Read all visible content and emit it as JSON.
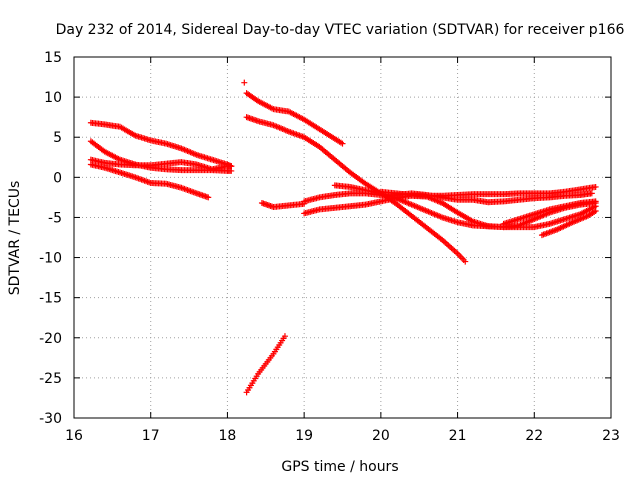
{
  "chart_data": {
    "type": "scatter",
    "title": "Day 232 of 2014, Sidereal Day-to-day VTEC variation (SDTVAR) for receiver p166",
    "xlabel": "GPS time / hours",
    "ylabel": "SDTVAR / TECUs",
    "xlim": [
      16,
      23
    ],
    "ylim": [
      -30,
      15
    ],
    "xticks": [
      16,
      17,
      18,
      19,
      20,
      21,
      22,
      23
    ],
    "yticks": [
      15,
      10,
      5,
      0,
      -5,
      -10,
      -15,
      -20,
      -25,
      -30
    ],
    "grid": true,
    "marker": "plus",
    "color": "#ff0000",
    "series": [
      {
        "x": [
          16.22,
          16.4,
          16.6,
          16.8,
          17.0,
          17.2,
          17.4,
          17.6,
          17.8,
          18.0,
          18.05
        ],
        "y": [
          6.8,
          6.6,
          6.3,
          5.2,
          4.6,
          4.2,
          3.6,
          2.8,
          2.2,
          1.6,
          1.4
        ]
      },
      {
        "x": [
          16.22,
          16.4,
          16.6,
          16.8,
          17.0,
          17.2,
          17.4,
          17.6,
          17.8,
          18.0,
          18.05
        ],
        "y": [
          4.5,
          3.2,
          2.2,
          1.6,
          1.2,
          1.0,
          0.9,
          0.9,
          0.9,
          0.8,
          0.8
        ]
      },
      {
        "x": [
          16.22,
          16.4,
          16.6,
          16.8,
          17.0,
          17.2,
          17.4,
          17.6,
          17.8,
          18.0,
          18.05
        ],
        "y": [
          2.2,
          1.8,
          1.6,
          1.5,
          1.5,
          1.7,
          1.9,
          1.6,
          1.0,
          1.4,
          1.4
        ]
      },
      {
        "x": [
          16.22,
          16.4,
          16.6,
          16.8,
          17.0,
          17.2,
          17.4,
          17.6,
          17.75
        ],
        "y": [
          1.6,
          1.2,
          0.6,
          0.0,
          -0.7,
          -0.8,
          -1.3,
          -2.0,
          -2.5
        ]
      },
      {
        "x": [
          18.25,
          18.4,
          18.6,
          18.8,
          19.0,
          19.2,
          19.4,
          19.5
        ],
        "y": [
          10.5,
          9.5,
          8.5,
          8.2,
          7.2,
          6.0,
          4.8,
          4.2
        ]
      },
      {
        "x": [
          18.25,
          18.4,
          18.6,
          18.8,
          19.0,
          19.2,
          19.4,
          19.6,
          19.8,
          20.0,
          20.2,
          20.4,
          20.6,
          20.8,
          21.0,
          21.1
        ],
        "y": [
          7.5,
          7.0,
          6.5,
          5.7,
          5.0,
          3.8,
          2.2,
          0.6,
          -0.8,
          -2.0,
          -3.3,
          -4.8,
          -6.3,
          -7.8,
          -9.5,
          -10.5
        ]
      },
      {
        "x": [
          18.45,
          18.6,
          18.8,
          19.0
        ],
        "y": [
          -3.2,
          -3.7,
          -3.5,
          -3.3
        ]
      },
      {
        "x": [
          18.25,
          18.4,
          18.6,
          18.75
        ],
        "y": [
          -26.8,
          -24.5,
          -22.0,
          -19.8
        ]
      },
      {
        "x": [
          19.0,
          19.2,
          19.4,
          19.6,
          19.8,
          20.0,
          20.2,
          20.4,
          20.6,
          20.8,
          21.0,
          21.2,
          21.4,
          21.6,
          21.8,
          22.0,
          22.2,
          22.4,
          22.6,
          22.75
        ],
        "y": [
          -3.0,
          -2.5,
          -2.2,
          -2.0,
          -2.0,
          -2.2,
          -2.2,
          -2.0,
          -2.2,
          -2.5,
          -2.8,
          -2.8,
          -3.1,
          -3.0,
          -2.8,
          -2.6,
          -2.5,
          -2.3,
          -2.2,
          -2.0
        ]
      },
      {
        "x": [
          19.4,
          19.6,
          19.8,
          20.0,
          20.2,
          20.4,
          20.6,
          20.8,
          21.0,
          21.2,
          21.4,
          21.6,
          21.8,
          22.0,
          22.2,
          22.4,
          22.6,
          22.8
        ],
        "y": [
          -1.0,
          -1.2,
          -1.6,
          -2.0,
          -2.6,
          -3.4,
          -4.2,
          -5.0,
          -5.6,
          -6.0,
          -6.1,
          -6.2,
          -6.2,
          -6.2,
          -5.8,
          -5.2,
          -4.6,
          -3.6
        ]
      },
      {
        "x": [
          19.0,
          19.2,
          19.4,
          19.6,
          19.8,
          20.0,
          20.2,
          20.4,
          20.6,
          20.8,
          21.0,
          21.2,
          21.4,
          21.6,
          21.8,
          22.0,
          22.2,
          22.4,
          22.6,
          22.8
        ],
        "y": [
          -4.5,
          -4.0,
          -3.8,
          -3.6,
          -3.4,
          -3.0,
          -2.6,
          -2.3,
          -2.4,
          -3.2,
          -4.4,
          -5.5,
          -6.1,
          -6.2,
          -6.0,
          -5.2,
          -4.4,
          -3.8,
          -3.4,
          -3.2
        ]
      },
      {
        "x": [
          20.0,
          20.2,
          20.4,
          20.6,
          20.8,
          21.0,
          21.2,
          21.4,
          21.6,
          21.8,
          22.0,
          22.2,
          22.4,
          22.6,
          22.8
        ],
        "y": [
          -1.8,
          -2.0,
          -2.2,
          -2.3,
          -2.3,
          -2.2,
          -2.1,
          -2.1,
          -2.1,
          -2.0,
          -2.0,
          -2.0,
          -1.8,
          -1.5,
          -1.2
        ]
      },
      {
        "x": [
          21.6,
          21.8,
          22.0,
          22.2,
          22.4,
          22.6,
          22.8
        ],
        "y": [
          -5.8,
          -5.2,
          -4.6,
          -4.0,
          -3.6,
          -3.2,
          -3.0
        ]
      },
      {
        "x": [
          22.1,
          22.3,
          22.5,
          22.7,
          22.8
        ],
        "y": [
          -7.2,
          -6.5,
          -5.6,
          -4.8,
          -4.2
        ]
      }
    ],
    "annotations": [
      {
        "x": 18.22,
        "y": 11.8,
        "note": "isolated point"
      }
    ]
  }
}
